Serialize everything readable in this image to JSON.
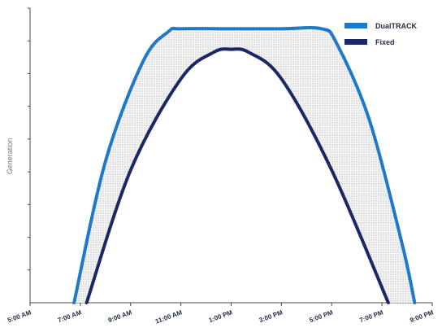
{
  "chart_data": {
    "type": "area",
    "title": "",
    "xlabel": "",
    "ylabel": "Generation",
    "x_ticks": [
      "5:00 AM",
      "7:00 AM",
      "9:00 AM",
      "11:00 AM",
      "1:00 PM",
      "3:00 PM",
      "5:00 PM",
      "7:00 PM",
      "9:00 PM"
    ],
    "x_range_hours": [
      5,
      21
    ],
    "y_range": [
      0,
      1
    ],
    "series": [
      {
        "name": "DualTRACK",
        "color": "#1f78c8",
        "x": [
          6.75,
          8.0,
          9.5,
          10.5,
          11.0,
          13.0,
          15.0,
          16.6,
          17.2,
          18.5,
          19.8,
          20.3
        ],
        "values": [
          0,
          0.48,
          0.82,
          0.92,
          0.93,
          0.93,
          0.93,
          0.93,
          0.88,
          0.62,
          0.2,
          0
        ]
      },
      {
        "name": "Fixed",
        "color": "#1a2866",
        "x": [
          7.25,
          9.0,
          11.0,
          12.3,
          13.0,
          13.7,
          15.0,
          17.0,
          19.25
        ],
        "values": [
          0,
          0.45,
          0.76,
          0.85,
          0.86,
          0.85,
          0.76,
          0.45,
          0
        ]
      }
    ],
    "fill_between": true,
    "fill_pattern": "dotted-gray",
    "legend_position": "top-right",
    "grid": false
  }
}
